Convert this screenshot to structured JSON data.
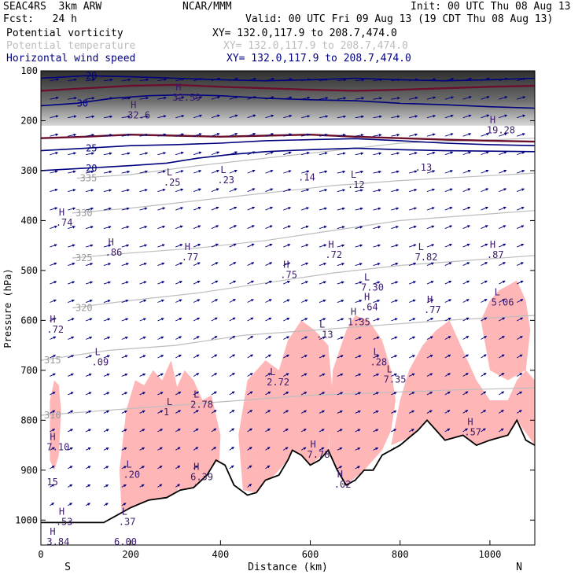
{
  "header": {
    "model": "SEAC4RS  3km ARW",
    "org": "NCAR/MMM",
    "init": "Init: 00 UTC Thu 08 Aug 13",
    "fcst": "Fcst:   24 h",
    "valid": "Valid: 00 UTC Fri 09 Aug 13 (19 CDT Thu 08 Aug 13)"
  },
  "legend": [
    {
      "name": "Potential vorticity",
      "xy": "XY= 132.0,117.9 to 208.7,474.0",
      "color": "#000000"
    },
    {
      "name": "Potential temperature",
      "xy": "XY= 132.0,117.9 to 208.7,474.0",
      "color": "#bdbdbd"
    },
    {
      "name": "Horizontal wind speed",
      "xy": "XY= 132.0,117.9 to 208.7,474.0",
      "color": "#00007f"
    }
  ],
  "chart_data": {
    "type": "cross-section",
    "xlabel": "Distance (km)",
    "ylabel": "Pressure (hPa)",
    "xlim": [
      0,
      1100
    ],
    "ylim": [
      1050,
      100
    ],
    "x_ticks": [
      "0",
      "200",
      "400",
      "600",
      "800",
      "1000"
    ],
    "x_tick_values": [
      0,
      200,
      400,
      600,
      800,
      1000
    ],
    "y_ticks": [
      "100",
      "200",
      "300",
      "400",
      "500",
      "600",
      "700",
      "800",
      "900",
      "1000"
    ],
    "y_tick_values": [
      100,
      200,
      300,
      400,
      500,
      600,
      700,
      800,
      900,
      1000
    ],
    "end_labels": {
      "left": "S",
      "right": "N"
    },
    "colors": {
      "shading": "#ffb6b6",
      "wind": "#00007f",
      "theta": "#bdbdbd",
      "pv": "#6b0f2a",
      "label": "#3a1a6a"
    },
    "terrain": [
      [
        0,
        1005
      ],
      [
        60,
        1005
      ],
      [
        140,
        1005
      ],
      [
        170,
        990
      ],
      [
        200,
        975
      ],
      [
        240,
        960
      ],
      [
        280,
        955
      ],
      [
        310,
        940
      ],
      [
        340,
        935
      ],
      [
        370,
        910
      ],
      [
        390,
        880
      ],
      [
        410,
        890
      ],
      [
        430,
        930
      ],
      [
        460,
        950
      ],
      [
        480,
        945
      ],
      [
        500,
        920
      ],
      [
        530,
        910
      ],
      [
        550,
        880
      ],
      [
        560,
        860
      ],
      [
        580,
        870
      ],
      [
        600,
        890
      ],
      [
        620,
        880
      ],
      [
        640,
        860
      ],
      [
        660,
        900
      ],
      [
        680,
        930
      ],
      [
        700,
        920
      ],
      [
        720,
        900
      ],
      [
        740,
        900
      ],
      [
        760,
        870
      ],
      [
        780,
        860
      ],
      [
        800,
        850
      ],
      [
        820,
        835
      ],
      [
        840,
        820
      ],
      [
        860,
        800
      ],
      [
        880,
        820
      ],
      [
        900,
        840
      ],
      [
        940,
        830
      ],
      [
        970,
        850
      ],
      [
        1000,
        840
      ],
      [
        1040,
        830
      ],
      [
        1060,
        800
      ],
      [
        1080,
        840
      ],
      [
        1100,
        850
      ]
    ],
    "theta_contours": [
      {
        "label": "335",
        "points": [
          [
            80,
            315
          ],
          [
            200,
            308
          ],
          [
            350,
            290
          ],
          [
            500,
            275
          ],
          [
            650,
            260
          ],
          [
            800,
            245
          ],
          [
            1100,
            235
          ]
        ]
      },
      {
        "label": "330",
        "points": [
          [
            70,
            385
          ],
          [
            200,
            375
          ],
          [
            350,
            360
          ],
          [
            500,
            345
          ],
          [
            650,
            330
          ],
          [
            800,
            320
          ],
          [
            1100,
            305
          ]
        ]
      },
      {
        "label": "325",
        "points": [
          [
            70,
            475
          ],
          [
            200,
            465
          ],
          [
            350,
            455
          ],
          [
            500,
            440
          ],
          [
            650,
            420
          ],
          [
            800,
            400
          ],
          [
            1100,
            380
          ]
        ]
      },
      {
        "label": "320",
        "points": [
          [
            70,
            575
          ],
          [
            200,
            560
          ],
          [
            350,
            545
          ],
          [
            500,
            525
          ],
          [
            650,
            505
          ],
          [
            800,
            490
          ],
          [
            1100,
            470
          ]
        ]
      },
      {
        "label": "315",
        "points": [
          [
            0,
            680
          ],
          [
            150,
            660
          ],
          [
            300,
            650
          ],
          [
            450,
            630
          ],
          [
            600,
            620
          ],
          [
            750,
            610
          ],
          [
            900,
            600
          ],
          [
            1100,
            590
          ]
        ]
      },
      {
        "label": "310",
        "points": [
          [
            0,
            790
          ],
          [
            150,
            780
          ],
          [
            300,
            770
          ],
          [
            450,
            760
          ],
          [
            600,
            750
          ],
          [
            750,
            745
          ],
          [
            900,
            740
          ],
          [
            1100,
            735
          ]
        ]
      }
    ],
    "pv_contours": [
      {
        "points": [
          [
            0,
            140
          ],
          [
            100,
            135
          ],
          [
            200,
            130
          ],
          [
            300,
            128
          ],
          [
            400,
            132
          ],
          [
            500,
            135
          ],
          [
            600,
            138
          ],
          [
            700,
            140
          ],
          [
            800,
            138
          ],
          [
            900,
            135
          ],
          [
            1000,
            132
          ],
          [
            1100,
            130
          ]
        ]
      },
      {
        "points": [
          [
            0,
            235
          ],
          [
            100,
            232
          ],
          [
            200,
            228
          ],
          [
            300,
            230
          ],
          [
            400,
            232
          ],
          [
            500,
            230
          ],
          [
            600,
            228
          ],
          [
            700,
            232
          ],
          [
            800,
            235
          ],
          [
            900,
            238
          ],
          [
            1000,
            240
          ],
          [
            1100,
            242
          ]
        ]
      }
    ],
    "wind_contours": [
      {
        "label": "20",
        "points": [
          [
            0,
            115
          ],
          [
            100,
            110
          ],
          [
            200,
            112
          ],
          [
            300,
            115
          ],
          [
            400,
            118
          ],
          [
            500,
            120
          ],
          [
            600,
            118
          ],
          [
            700,
            115
          ],
          [
            800,
            118
          ],
          [
            900,
            120
          ],
          [
            1000,
            118
          ],
          [
            1100,
            115
          ]
        ]
      },
      {
        "label": "30",
        "points": [
          [
            0,
            170
          ],
          [
            80,
            165
          ],
          [
            160,
            155
          ],
          [
            240,
            150
          ],
          [
            320,
            148
          ],
          [
            400,
            150
          ],
          [
            500,
            155
          ],
          [
            600,
            158
          ],
          [
            700,
            160
          ],
          [
            800,
            165
          ],
          [
            900,
            168
          ],
          [
            1000,
            172
          ],
          [
            1100,
            175
          ]
        ]
      },
      {
        "label": "25",
        "points": [
          [
            0,
            260
          ],
          [
            100,
            255
          ],
          [
            200,
            250
          ],
          [
            300,
            248
          ],
          [
            400,
            245
          ],
          [
            500,
            240
          ],
          [
            600,
            238
          ],
          [
            700,
            236
          ],
          [
            800,
            240
          ],
          [
            900,
            245
          ],
          [
            1000,
            248
          ],
          [
            1100,
            250
          ]
        ]
      },
      {
        "label": "20",
        "points": [
          [
            0,
            300
          ],
          [
            100,
            295
          ],
          [
            200,
            290
          ],
          [
            280,
            285
          ],
          [
            350,
            275
          ],
          [
            420,
            268
          ],
          [
            500,
            262
          ],
          [
            600,
            258
          ],
          [
            700,
            255
          ],
          [
            800,
            258
          ],
          [
            900,
            260
          ],
          [
            1100,
            262
          ]
        ]
      }
    ],
    "shaded_regions": [
      [
        [
          20,
          760
        ],
        [
          30,
          720
        ],
        [
          40,
          730
        ],
        [
          45,
          780
        ],
        [
          40,
          870
        ],
        [
          30,
          900
        ],
        [
          20,
          880
        ]
      ],
      [
        [
          180,
          990
        ],
        [
          175,
          900
        ],
        [
          190,
          780
        ],
        [
          210,
          720
        ],
        [
          230,
          730
        ],
        [
          250,
          700
        ],
        [
          270,
          720
        ],
        [
          290,
          680
        ],
        [
          310,
          760
        ],
        [
          320,
          880
        ],
        [
          300,
          960
        ],
        [
          260,
          990
        ]
      ],
      [
        [
          290,
          900
        ],
        [
          300,
          740
        ],
        [
          320,
          700
        ],
        [
          340,
          720
        ],
        [
          360,
          760
        ],
        [
          380,
          750
        ],
        [
          400,
          830
        ],
        [
          395,
          930
        ],
        [
          370,
          950
        ],
        [
          320,
          960
        ]
      ],
      [
        [
          450,
          940
        ],
        [
          440,
          830
        ],
        [
          460,
          720
        ],
        [
          500,
          680
        ],
        [
          530,
          700
        ],
        [
          550,
          640
        ],
        [
          580,
          600
        ],
        [
          610,
          620
        ],
        [
          640,
          650
        ],
        [
          650,
          750
        ],
        [
          640,
          860
        ],
        [
          600,
          890
        ],
        [
          560,
          870
        ],
        [
          520,
          910
        ],
        [
          480,
          945
        ]
      ],
      [
        [
          640,
          880
        ],
        [
          650,
          700
        ],
        [
          680,
          620
        ],
        [
          700,
          590
        ],
        [
          730,
          600
        ],
        [
          760,
          640
        ],
        [
          780,
          700
        ],
        [
          790,
          760
        ],
        [
          780,
          820
        ],
        [
          760,
          860
        ],
        [
          720,
          900
        ],
        [
          680,
          930
        ]
      ],
      [
        [
          780,
          850
        ],
        [
          800,
          760
        ],
        [
          820,
          700
        ],
        [
          850,
          650
        ],
        [
          880,
          620
        ],
        [
          910,
          600
        ],
        [
          930,
          640
        ],
        [
          950,
          680
        ],
        [
          970,
          720
        ],
        [
          1000,
          760
        ],
        [
          1040,
          760
        ],
        [
          1060,
          720
        ],
        [
          1080,
          700
        ],
        [
          1100,
          720
        ],
        [
          1100,
          850
        ],
        [
          1060,
          800
        ],
        [
          1040,
          830
        ],
        [
          1000,
          840
        ],
        [
          970,
          850
        ],
        [
          940,
          830
        ],
        [
          900,
          840
        ],
        [
          860,
          800
        ],
        [
          820,
          835
        ]
      ],
      [
        [
          980,
          600
        ],
        [
          1000,
          560
        ],
        [
          1020,
          540
        ],
        [
          1060,
          520
        ],
        [
          1080,
          560
        ],
        [
          1090,
          620
        ],
        [
          1080,
          700
        ],
        [
          1040,
          720
        ],
        [
          1000,
          700
        ]
      ]
    ],
    "grey_band": {
      "top": 100,
      "bottom": 210
    },
    "extrema_labels": [
      {
        "type": "H",
        "value": "32.6",
        "x": 200,
        "p": 195
      },
      {
        "type": "H",
        "value": "32.59",
        "x": 300,
        "p": 160
      },
      {
        "type": "H",
        "value": "19.28",
        "x": 1000,
        "p": 225
      },
      {
        "type": "L",
        "value": ".25",
        "x": 280,
        "p": 330
      },
      {
        "type": "L",
        "value": ".23",
        "x": 400,
        "p": 325
      },
      {
        "type": "",
        "value": ".14",
        "x": 580,
        "p": 320
      },
      {
        "type": "L",
        "value": ".12",
        "x": 690,
        "p": 335
      },
      {
        "type": "",
        "value": ".13",
        "x": 840,
        "p": 300
      },
      {
        "type": "H",
        "value": ".74",
        "x": 40,
        "p": 410
      },
      {
        "type": "H",
        "value": ".86",
        "x": 150,
        "p": 470
      },
      {
        "type": "H",
        "value": ".77",
        "x": 320,
        "p": 480
      },
      {
        "type": "H",
        "value": ".75",
        "x": 540,
        "p": 515
      },
      {
        "type": "H",
        "value": ".72",
        "x": 640,
        "p": 475
      },
      {
        "type": "L",
        "value": "7.82",
        "x": 840,
        "p": 480
      },
      {
        "type": "H",
        "value": ".87",
        "x": 1000,
        "p": 475
      },
      {
        "type": "L",
        "value": "7.30",
        "x": 720,
        "p": 540
      },
      {
        "type": "H",
        "value": ".72",
        "x": 20,
        "p": 625
      },
      {
        "type": "L",
        "value": ".09",
        "x": 120,
        "p": 690
      },
      {
        "type": "L",
        "value": ".13",
        "x": 620,
        "p": 635
      },
      {
        "type": "H",
        "value": "1.35",
        "x": 690,
        "p": 610
      },
      {
        "type": "H",
        "value": ".64",
        "x": 720,
        "p": 580
      },
      {
        "type": "H",
        "value": ".77",
        "x": 860,
        "p": 585
      },
      {
        "type": "L",
        "value": "5.06",
        "x": 1010,
        "p": 570
      },
      {
        "type": "L",
        "value": ".28",
        "x": 740,
        "p": 690
      },
      {
        "type": "L",
        "value": "7.35",
        "x": 770,
        "p": 725
      },
      {
        "type": "L",
        "value": "2.72",
        "x": 510,
        "p": 730
      },
      {
        "type": "L",
        "value": "1",
        "x": 280,
        "p": 790
      },
      {
        "type": "L",
        "value": "2.78",
        "x": 340,
        "p": 775
      },
      {
        "type": "H",
        "value": "7.10",
        "x": 20,
        "p": 860
      },
      {
        "type": "",
        "value": "15",
        "x": 20,
        "p": 930
      },
      {
        "type": "L",
        "value": ".20",
        "x": 190,
        "p": 915
      },
      {
        "type": "H",
        "value": "6.39",
        "x": 340,
        "p": 920
      },
      {
        "type": "H",
        "value": "7.78",
        "x": 600,
        "p": 875
      },
      {
        "type": "H",
        "value": ".02",
        "x": 660,
        "p": 935
      },
      {
        "type": "H",
        "value": ".57",
        "x": 950,
        "p": 830
      },
      {
        "type": "H",
        "value": ".53",
        "x": 40,
        "p": 1010
      },
      {
        "type": "L",
        "value": ".37",
        "x": 180,
        "p": 1010
      },
      {
        "type": "H",
        "value": "3.84",
        "x": 20,
        "p": 1050
      },
      {
        "type": "",
        "value": "6.00",
        "x": 170,
        "p": 1050
      }
    ],
    "wind_field_note": ""
  }
}
